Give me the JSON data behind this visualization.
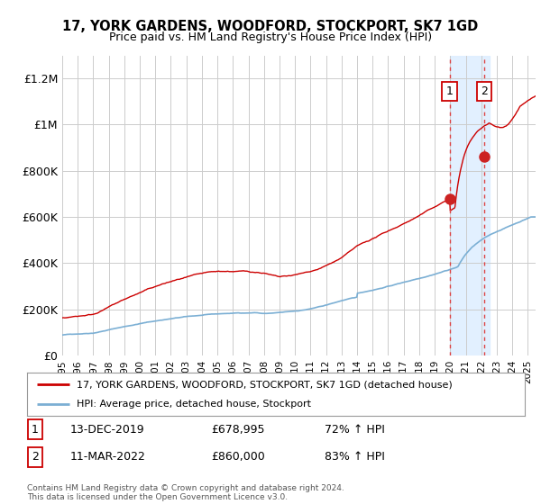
{
  "title": "17, YORK GARDENS, WOODFORD, STOCKPORT, SK7 1GD",
  "subtitle": "Price paid vs. HM Land Registry's House Price Index (HPI)",
  "legend_line1": "17, YORK GARDENS, WOODFORD, STOCKPORT, SK7 1GD (detached house)",
  "legend_line2": "HPI: Average price, detached house, Stockport",
  "annotation1_label": "1",
  "annotation1_date": "13-DEC-2019",
  "annotation1_price": "£678,995",
  "annotation1_hpi": "72% ↑ HPI",
  "annotation2_label": "2",
  "annotation2_date": "11-MAR-2022",
  "annotation2_price": "£860,000",
  "annotation2_hpi": "83% ↑ HPI",
  "footer": "Contains HM Land Registry data © Crown copyright and database right 2024.\nThis data is licensed under the Open Government Licence v3.0.",
  "red_line_color": "#cc0000",
  "blue_line_color": "#7bafd4",
  "shade_color": "#ddeeff",
  "dashed_vline_color": "#dd4444",
  "grid_color": "#cccccc",
  "bg_color": "#ffffff",
  "marker_color": "#cc2222",
  "ylim": [
    0,
    1300000
  ],
  "yticks": [
    0,
    200000,
    400000,
    600000,
    800000,
    1000000,
    1200000
  ],
  "ytick_labels": [
    "£0",
    "£200K",
    "£400K",
    "£600K",
    "£800K",
    "£1M",
    "£1.2M"
  ],
  "sale1_x": 2019.96,
  "sale1_y": 678995,
  "sale2_x": 2022.19,
  "sale2_y": 860000,
  "xmin": 1995.0,
  "xmax": 2025.5
}
